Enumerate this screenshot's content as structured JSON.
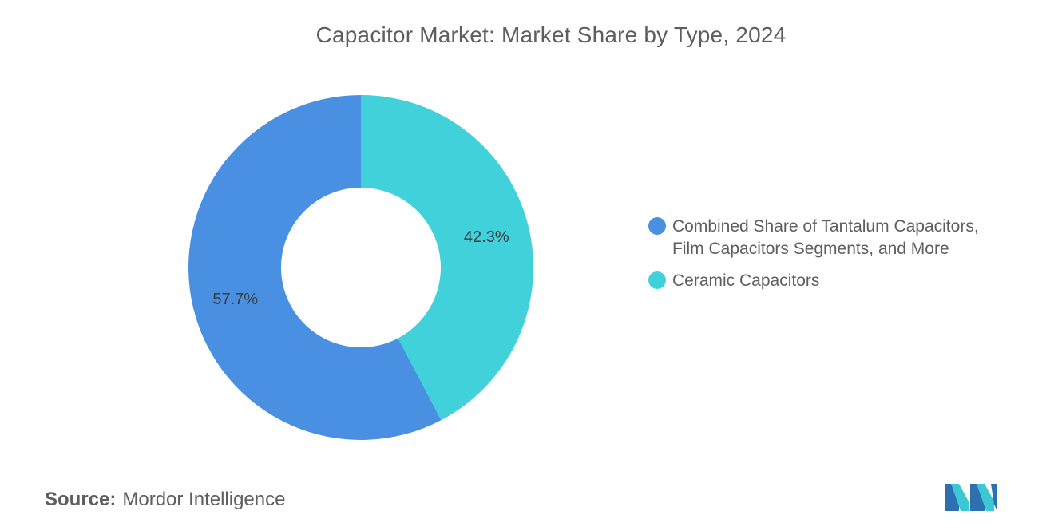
{
  "title": "Capacitor Market: Market Share by Type, 2024",
  "source_label": "Source:",
  "source_value": "Mordor Intelligence",
  "colors": {
    "series_1": "#4a90e2",
    "series_2": "#40d1db",
    "logo_dark": "#2e6fb0",
    "logo_light": "#3cc7d5"
  },
  "chart_data": {
    "type": "pie",
    "donut": true,
    "title": "Capacitor Market: Market Share by Type, 2024",
    "legend_position": "right",
    "slices": [
      {
        "name": "Combined Share of Tantalum Capacitors, Film Capacitors Segments, and More",
        "value": 57.7,
        "label": "57.7%",
        "color": "#4a90e2"
      },
      {
        "name": "Ceramic Capacitors",
        "value": 42.3,
        "label": "42.3%",
        "color": "#40d1db"
      }
    ]
  },
  "legend": {
    "items": [
      {
        "label_line1": "Combined Share of Tantalum Capacitors,",
        "label_line2": "Film Capacitors Segments, and More"
      },
      {
        "label_line1": "Ceramic Capacitors",
        "label_line2": ""
      }
    ]
  }
}
